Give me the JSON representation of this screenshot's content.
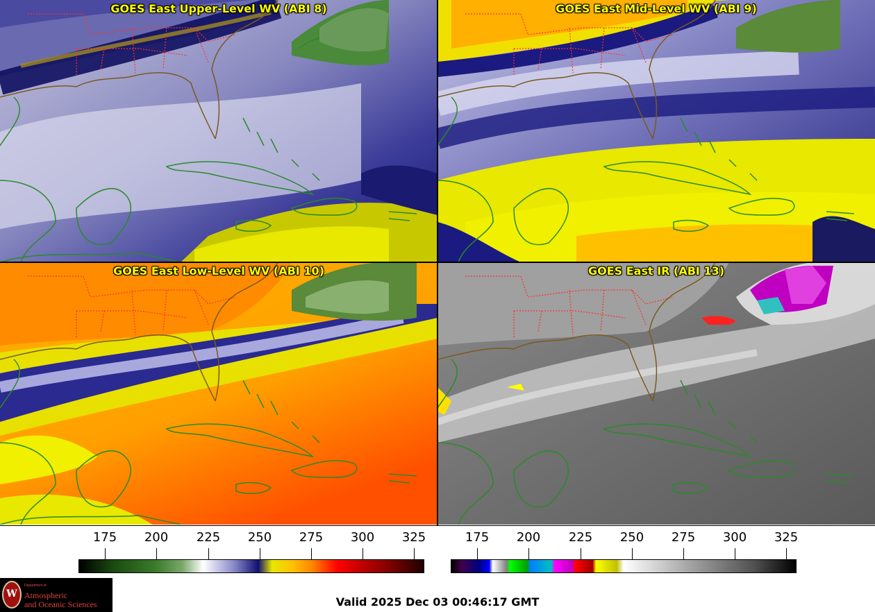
{
  "panels": [
    {
      "title": "GOES East Upper-Level WV (ABI 8)"
    },
    {
      "title": "GOES East Mid-Level WV (ABI 9)"
    },
    {
      "title": "GOES East Low-Level WV (ABI 10)"
    },
    {
      "title": "GOES East IR (ABI 13)"
    }
  ],
  "colorbars": [
    {
      "ticks": [
        "175",
        "200",
        "225",
        "250",
        "275",
        "300",
        "325"
      ]
    },
    {
      "ticks": [
        "175",
        "200",
        "225",
        "250",
        "275",
        "300",
        "325"
      ]
    }
  ],
  "logo": {
    "line1": "Department of",
    "line2": "Atmospheric",
    "line3": "and Oceanic Sciences",
    "seal_letter": "W"
  },
  "valid_time": "Valid 2025 Dec 03 00:46:17 GMT",
  "colors": {
    "title_text": "#ffff00",
    "state_borders": "#ff3030",
    "coastline": "#2a8a2a",
    "us_coast": "#7a5a20"
  }
}
